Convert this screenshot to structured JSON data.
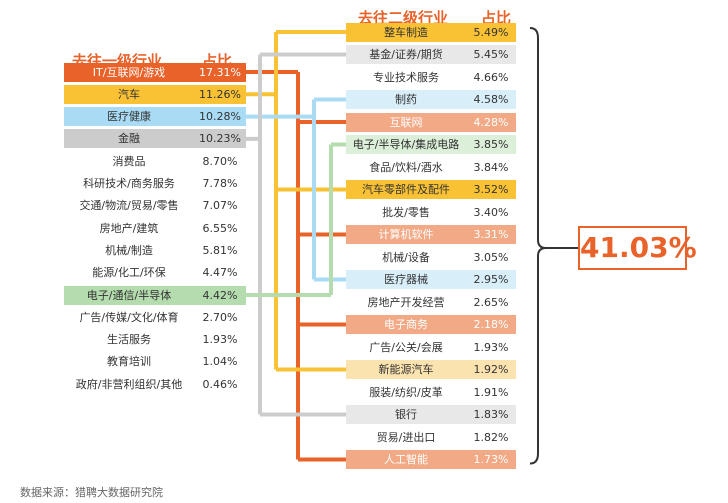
{
  "left_header": {
    "title": "去往一级行业",
    "pct": "占比"
  },
  "right_header": {
    "title": "去往二级行业",
    "pct": "占比"
  },
  "left_rows": [
    {
      "label": "IT/互联网/游戏",
      "pct": "17.31%"
    },
    {
      "label": "汽车",
      "pct": "11.26%"
    },
    {
      "label": "医疗健康",
      "pct": "10.28%"
    },
    {
      "label": "金融",
      "pct": "10.23%"
    },
    {
      "label": "消费品",
      "pct": "8.70%"
    },
    {
      "label": "科研技术/商务服务",
      "pct": "7.78%"
    },
    {
      "label": "交通/物流/贸易/零售",
      "pct": "7.07%"
    },
    {
      "label": "房地产/建筑",
      "pct": "6.55%"
    },
    {
      "label": "机械/制造",
      "pct": "5.81%"
    },
    {
      "label": "能源/化工/环保",
      "pct": "4.47%"
    },
    {
      "label": "电子/通信/半导体",
      "pct": "4.42%"
    },
    {
      "label": "广告/传媒/文化/体育",
      "pct": "2.70%"
    },
    {
      "label": "生活服务",
      "pct": "1.93%"
    },
    {
      "label": "教育培训",
      "pct": "1.04%"
    },
    {
      "label": "政府/非营利组织/其他",
      "pct": "0.46%"
    }
  ],
  "right_rows": [
    {
      "label": "整车制造",
      "pct": "5.49%"
    },
    {
      "label": "基金/证券/期货",
      "pct": "5.45%"
    },
    {
      "label": "专业技术服务",
      "pct": "4.66%"
    },
    {
      "label": "制药",
      "pct": "4.58%"
    },
    {
      "label": "互联网",
      "pct": "4.28%"
    },
    {
      "label": "电子/半导体/集成电路",
      "pct": "3.85%"
    },
    {
      "label": "食品/饮料/酒水",
      "pct": "3.84%"
    },
    {
      "label": "汽车零部件及配件",
      "pct": "3.52%"
    },
    {
      "label": "批发/零售",
      "pct": "3.40%"
    },
    {
      "label": "计算机软件",
      "pct": "3.31%"
    },
    {
      "label": "机械/设备",
      "pct": "3.05%"
    },
    {
      "label": "医疗器械",
      "pct": "2.95%"
    },
    {
      "label": "房地产开发经营",
      "pct": "2.65%"
    },
    {
      "label": "电子商务",
      "pct": "2.18%"
    },
    {
      "label": "广告/公关/会展",
      "pct": "1.93%"
    },
    {
      "label": "新能源汽车",
      "pct": "1.92%"
    },
    {
      "label": "服装/纺织/皮革",
      "pct": "1.91%"
    },
    {
      "label": "银行",
      "pct": "1.83%"
    },
    {
      "label": "贸易/进出口",
      "pct": "1.82%"
    },
    {
      "label": "人工智能",
      "pct": "1.73%"
    }
  ],
  "total": "41.03%",
  "source": "数据来源：猎聘大数据研究院",
  "colors": {
    "orange": "#e8622a",
    "yellow": "#f8c234",
    "lightblue": "#a9dbf4",
    "gray": "#cccccc",
    "green": "#b4dcae",
    "lightorange": "#f2a986",
    "palegray": "#e8e8e8",
    "paleyellow": "#fbe3b0",
    "paleblue": "#d8eef9",
    "palegreen": "#dcefd8"
  }
}
